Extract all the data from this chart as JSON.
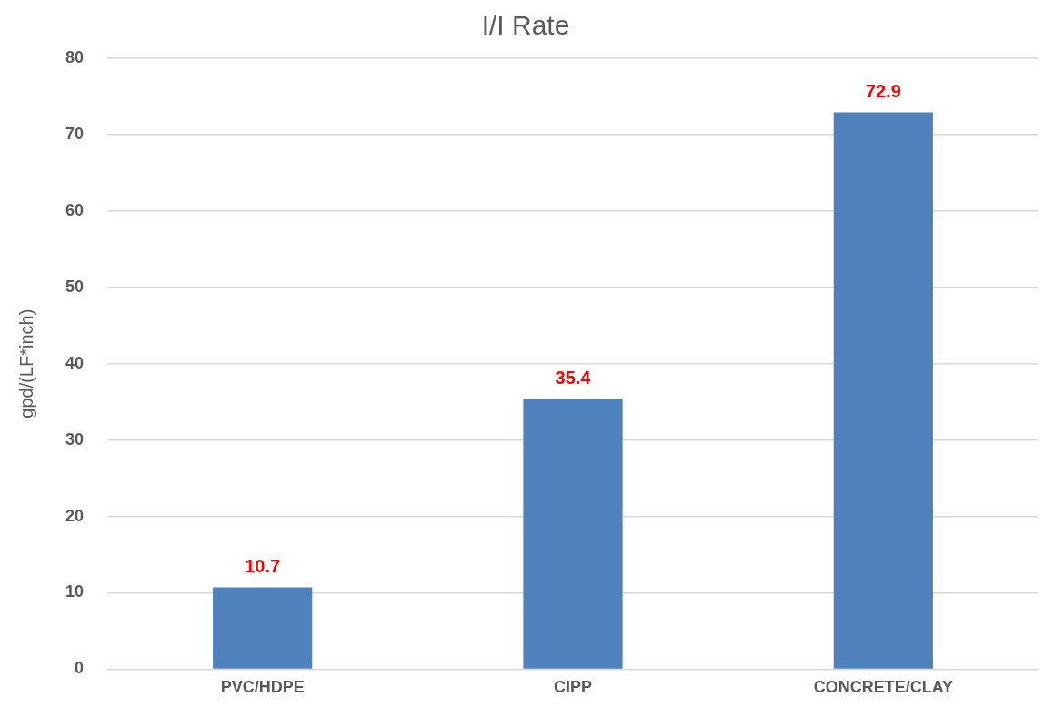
{
  "chart_data": {
    "type": "bar",
    "title": "I/I Rate",
    "ylabel": "gpd/(LF*inch)",
    "categories": [
      "PVC/HDPE",
      "CIPP",
      "CONCRETE/CLAY"
    ],
    "values": [
      10.7,
      35.4,
      72.9
    ],
    "color": "#4f81bd",
    "ylim": [
      0,
      80
    ],
    "yticks": [
      0,
      10,
      20,
      30,
      40,
      50,
      60,
      70,
      80
    ],
    "grid": "y",
    "data_labels": true
  }
}
